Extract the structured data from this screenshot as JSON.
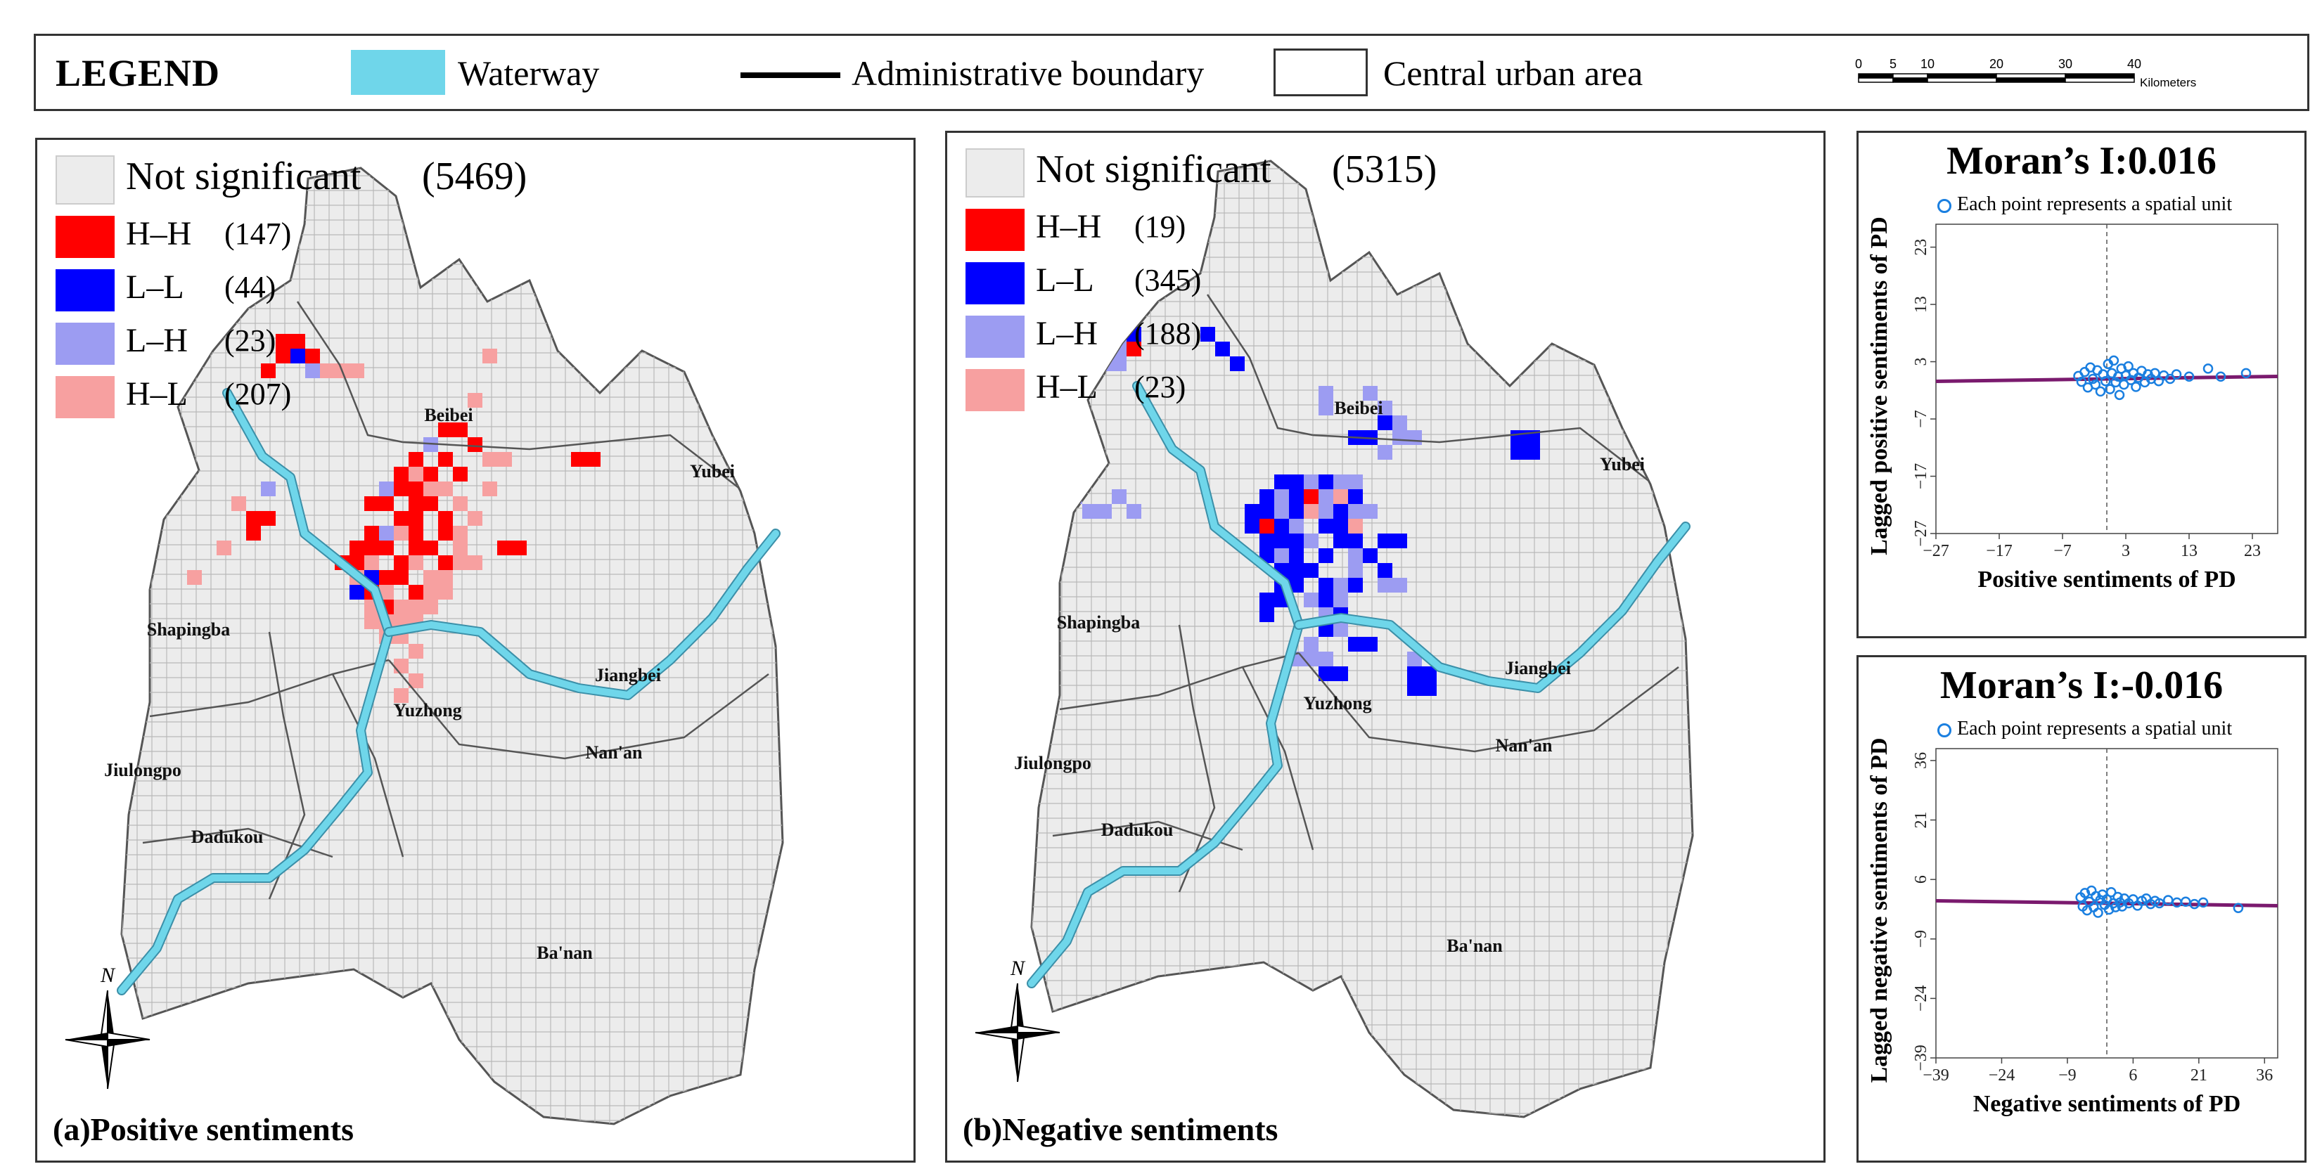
{
  "legend": {
    "title": "LEGEND",
    "waterway_label": "Waterway",
    "boundary_label": "Administrative boundary",
    "urban_label": "Central urban area",
    "waterway_color": "#6fd6ea",
    "scale_ticks": [
      "0",
      "5",
      "10",
      "20",
      "30",
      "40"
    ],
    "scale_unit": "Kilometers"
  },
  "colors": {
    "not_significant": "#ececec",
    "hh": "#ff0000",
    "ll": "#0000ff",
    "lh": "#9c9cf2",
    "hl": "#f7a0a0",
    "water": "#6fd6ea",
    "grid": "#b9b9b9",
    "regression_line": "#7a1a6e",
    "points": "#1a7fe0"
  },
  "map_a": {
    "label": "(a)Positive sentiments",
    "legend": [
      {
        "code": "Not significant",
        "count": "(5469)",
        "class": "ns"
      },
      {
        "code": "H–H",
        "count": "(147)",
        "class": "hh"
      },
      {
        "code": "L–L",
        "count": "(44)",
        "class": "ll"
      },
      {
        "code": "L–H",
        "count": "(23)",
        "class": "lh"
      },
      {
        "code": "H–L",
        "count": "(207)",
        "class": "hl"
      }
    ],
    "places": [
      "Beibei",
      "Yubei",
      "Shapingba",
      "Jiangbei",
      "Yuzhong",
      "Nan'an",
      "Jiulongpo",
      "Dadukou",
      "Ba'nan"
    ],
    "compass_label": "N"
  },
  "map_b": {
    "label": "(b)Negative sentiments",
    "legend": [
      {
        "code": "Not significant",
        "count": "(5315)",
        "class": "ns"
      },
      {
        "code": "H–H",
        "count": "(19)",
        "class": "hh"
      },
      {
        "code": "L–L",
        "count": "(345)",
        "class": "ll"
      },
      {
        "code": "L–H",
        "count": "(188)",
        "class": "lh"
      },
      {
        "code": "H–L",
        "count": "(23)",
        "class": "hl"
      }
    ],
    "places": [
      "Beibei",
      "Yubei",
      "Shapingba",
      "Jiangbei",
      "Yuzhong",
      "Nan'an",
      "Jiulongpo",
      "Dadukou",
      "Ba'nan"
    ],
    "compass_label": "N"
  },
  "chart_data": [
    {
      "type": "scatter",
      "title": "Moran’s I:0.016",
      "legend_label": "Each point represents a spatial unit",
      "xlabel": "Positive sentiments of PD",
      "ylabel": "Lagged positive sentiments of PD",
      "xticks": [
        -27,
        -17,
        -7,
        3,
        13,
        23
      ],
      "yticks": [
        -27,
        -17,
        -7,
        3,
        13,
        23
      ],
      "xlim": [
        -27,
        27
      ],
      "ylim": [
        -27,
        27
      ],
      "regression": {
        "slope": 0.016,
        "intercept": 0
      },
      "points": [
        [
          -4.5,
          0.5
        ],
        [
          -4,
          -0.5
        ],
        [
          -3.5,
          1.2
        ],
        [
          -3,
          -1.5
        ],
        [
          -2.6,
          2
        ],
        [
          -2.2,
          0
        ],
        [
          -1.8,
          -1
        ],
        [
          -1.5,
          1.5
        ],
        [
          -1,
          -2.2
        ],
        [
          -0.6,
          0.8
        ],
        [
          -0.2,
          -0.4
        ],
        [
          0.2,
          2.6
        ],
        [
          0.5,
          -1.8
        ],
        [
          0.8,
          1
        ],
        [
          1.1,
          3.2
        ],
        [
          1.4,
          -0.6
        ],
        [
          1.8,
          0.4
        ],
        [
          2,
          -2.8
        ],
        [
          2.3,
          1.8
        ],
        [
          2.7,
          -1
        ],
        [
          3,
          0.6
        ],
        [
          3.4,
          2.2
        ],
        [
          3.8,
          -0.2
        ],
        [
          4.2,
          1
        ],
        [
          4.6,
          -1.4
        ],
        [
          5,
          0.2
        ],
        [
          5.5,
          1.4
        ],
        [
          6,
          -0.6
        ],
        [
          6.5,
          0.8
        ],
        [
          7,
          0
        ],
        [
          7.6,
          1
        ],
        [
          8.2,
          -0.4
        ],
        [
          9,
          0.6
        ],
        [
          10,
          0
        ],
        [
          11,
          0.8
        ],
        [
          13,
          0.4
        ],
        [
          16,
          1.8
        ],
        [
          18,
          0.4
        ],
        [
          22,
          1
        ]
      ]
    },
    {
      "type": "scatter",
      "title": "Moran’s I:-0.016",
      "legend_label": "Each point represents a spatial unit",
      "xlabel": "Negative sentiments of PD",
      "ylabel": "Lagged negative sentiments of PD",
      "xticks": [
        -39,
        -24,
        -9,
        6,
        21,
        36
      ],
      "yticks": [
        -39,
        -24,
        -9,
        6,
        21,
        36
      ],
      "xlim": [
        -39,
        39
      ],
      "ylim": [
        -39,
        39
      ],
      "regression": {
        "slope": -0.016,
        "intercept": 0
      },
      "points": [
        [
          -6,
          1.5
        ],
        [
          -5.5,
          -0.8
        ],
        [
          -5,
          2.6
        ],
        [
          -4.5,
          -1.8
        ],
        [
          -4,
          0.4
        ],
        [
          -3.5,
          3.2
        ],
        [
          -3,
          -1
        ],
        [
          -2.5,
          1.8
        ],
        [
          -2,
          -2.4
        ],
        [
          -1.5,
          0.8
        ],
        [
          -1,
          2.2
        ],
        [
          -0.5,
          -0.4
        ],
        [
          0,
          1
        ],
        [
          0.5,
          -1.6
        ],
        [
          1,
          2.8
        ],
        [
          1.5,
          0
        ],
        [
          2,
          -1
        ],
        [
          2.5,
          1.6
        ],
        [
          3,
          0.2
        ],
        [
          3.5,
          -0.8
        ],
        [
          4,
          1.2
        ],
        [
          5,
          0
        ],
        [
          6,
          1
        ],
        [
          7,
          -0.6
        ],
        [
          8,
          0.6
        ],
        [
          9,
          1.2
        ],
        [
          10,
          -0.2
        ],
        [
          11,
          0.6
        ],
        [
          12,
          0
        ],
        [
          14,
          0.8
        ],
        [
          16,
          0.2
        ],
        [
          18,
          0.4
        ],
        [
          20,
          -0.2
        ],
        [
          22,
          0.2
        ],
        [
          30,
          -1.2
        ]
      ]
    }
  ]
}
